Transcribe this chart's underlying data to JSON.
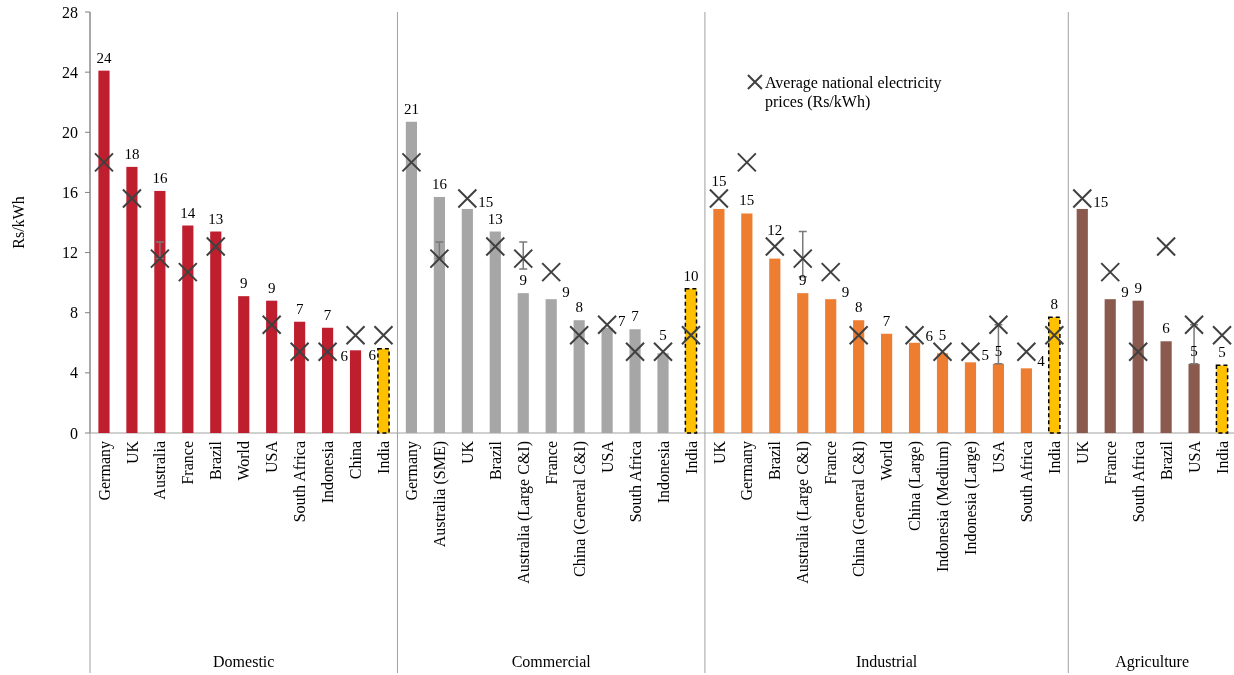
{
  "chart_data": [
    {
      "type": "bar",
      "xlabel": "Domestic",
      "ylabel": "Rs/kWh",
      "ylim": [
        0,
        28
      ],
      "yticks": [
        0,
        4,
        8,
        12,
        16,
        20,
        24,
        28
      ],
      "marker": "cross",
      "categories": [
        "Germany",
        "UK",
        "Australia",
        "France",
        "Brazil",
        "World",
        "USA",
        "South Africa",
        "Indonesia",
        "China",
        "India"
      ],
      "series": [
        {
          "color": "#be1e2d",
          "colors": [
            "#be1e2d",
            "#be1e2d",
            "#be1e2d",
            "#be1e2d",
            "#be1e2d",
            "#be1e2d",
            "#be1e2d",
            "#be1e2d",
            "#be1e2d",
            "#be1e2d",
            "#ffc000"
          ],
          "values": [
            24.1,
            17.7,
            16.1,
            13.8,
            13.4,
            9.1,
            8.8,
            7.4,
            7.0,
            5.5,
            5.6
          ],
          "value_labels": [
            "24",
            "18",
            "16",
            "14",
            "13",
            "9",
            "9",
            "7",
            "7",
            "6",
            "6"
          ]
        },
        {
          "type": "scatter",
          "color": "#404040",
          "values": [
            18.0,
            15.6,
            11.6,
            10.7,
            12.4,
            null,
            7.2,
            5.4,
            5.4,
            6.5,
            6.5
          ],
          "errors": [
            null,
            null,
            [
              11.6,
              12.7
            ],
            null,
            null,
            null,
            null,
            null,
            null,
            null,
            null
          ]
        }
      ]
    },
    {
      "type": "bar",
      "xlabel": "Commercial",
      "ylim": [
        0,
        28
      ],
      "tick_labels": "x",
      "marker": "cross",
      "categories": [
        "Germany",
        "Australia (SME)",
        "UK",
        "Brazil",
        "Australia (Large C&I)",
        "France",
        "China (General C&I)",
        "USA",
        "South Africa",
        "Indonesia",
        "India"
      ],
      "series": [
        {
          "color": "#a6a6a6",
          "colors": [
            "#a6a6a6",
            "#a6a6a6",
            "#a6a6a6",
            "#a6a6a6",
            "#a6a6a6",
            "#a6a6a6",
            "#a6a6a6",
            "#a6a6a6",
            "#a6a6a6",
            "#a6a6a6",
            "#ffc000"
          ],
          "values": [
            20.7,
            15.7,
            14.9,
            13.4,
            9.3,
            8.9,
            7.5,
            7.0,
            6.9,
            5.3,
            9.6
          ],
          "value_labels": [
            "21",
            "16",
            "15",
            "13",
            "9",
            "9",
            "8",
            "7",
            "7",
            "5",
            "10"
          ]
        },
        {
          "type": "scatter",
          "color": "#404040",
          "values": [
            18.0,
            11.6,
            15.6,
            12.4,
            11.6,
            10.7,
            6.5,
            7.2,
            5.4,
            5.4,
            6.5
          ],
          "errors": [
            null,
            [
              11.6,
              12.7
            ],
            null,
            null,
            [
              10.9,
              12.7
            ],
            null,
            null,
            null,
            null,
            null,
            null
          ]
        }
      ]
    },
    {
      "type": "bar",
      "xlabel": "Industrial",
      "ylim": [
        0,
        28
      ],
      "tick_labels": "x",
      "marker": "cross",
      "legend": "top",
      "categories": [
        "UK",
        "Germany",
        "Brazil",
        "Australia (Large C&I)",
        "France",
        "China (General C&I)",
        "World",
        "China (Large)",
        "Indonesia (Medium)",
        "Indonesia (Large)",
        "USA",
        "South Africa",
        "India"
      ],
      "series": [
        {
          "color": "#ed7d31",
          "colors": [
            "#ed7d31",
            "#ed7d31",
            "#ed7d31",
            "#ed7d31",
            "#ed7d31",
            "#ed7d31",
            "#ed7d31",
            "#ed7d31",
            "#ed7d31",
            "#ed7d31",
            "#ed7d31",
            "#ed7d31",
            "#ffc000"
          ],
          "values": [
            14.9,
            14.6,
            11.6,
            9.3,
            8.9,
            7.5,
            6.6,
            6.0,
            5.3,
            4.7,
            4.6,
            4.3,
            7.7
          ],
          "value_labels": [
            "15",
            "15",
            "12",
            "9",
            "9",
            "8",
            "7",
            "6",
            "5",
            "5",
            "5",
            "4",
            "8"
          ]
        },
        {
          "type": "scatter",
          "name": "Average national electricity prices (Rs/kWh)",
          "color": "#404040",
          "values": [
            15.6,
            18.0,
            12.4,
            11.6,
            10.7,
            6.5,
            null,
            6.5,
            5.4,
            5.4,
            7.2,
            5.4,
            6.5
          ],
          "errors": [
            null,
            null,
            null,
            [
              10.4,
              13.4
            ],
            null,
            null,
            null,
            null,
            null,
            null,
            [
              4.6,
              7.2
            ],
            null,
            null
          ]
        }
      ]
    },
    {
      "type": "bar",
      "xlabel": "Agriculture",
      "ylim": [
        0,
        28
      ],
      "tick_labels": "x",
      "marker": "cross",
      "categories": [
        "UK",
        "France",
        "South Africa",
        "Brazil",
        "USA",
        "India"
      ],
      "series": [
        {
          "color": "#8b5a4e",
          "colors": [
            "#8b5a4e",
            "#8b5a4e",
            "#8b5a4e",
            "#8b5a4e",
            "#8b5a4e",
            "#ffc000"
          ],
          "values": [
            14.9,
            8.9,
            8.8,
            6.1,
            4.6,
            4.5
          ],
          "value_labels": [
            "15",
            "9",
            "9",
            "6",
            "5",
            "5"
          ]
        },
        {
          "type": "scatter",
          "color": "#404040",
          "values": [
            15.6,
            10.7,
            5.4,
            12.4,
            7.2,
            6.5
          ],
          "errors": [
            null,
            null,
            null,
            null,
            [
              4.6,
              7.2
            ],
            null
          ]
        }
      ]
    }
  ]
}
